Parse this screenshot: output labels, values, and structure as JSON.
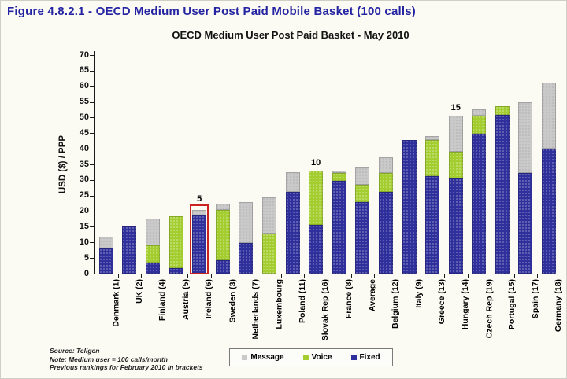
{
  "figure_title": "Figure 4.8.2.1 - OECD Medium User Post Paid Mobile Basket (100 calls)",
  "notes": [
    "Source: Teligen",
    "Note: Medium user = 100 calls/month",
    "Previous rankings for February 2010 in brackets"
  ],
  "colors": {
    "title": "#2424A3",
    "fixed": "#30309C",
    "voice": "#A4CE30",
    "message": "#C9C9C9",
    "highlight": "#CC2222",
    "axis": "#1a1a1a"
  },
  "chart_data": {
    "type": "bar",
    "stacked": true,
    "title": "OECD Medium User Post Paid Basket - May 2010",
    "ylabel": "USD ($) / PPP",
    "ylim": [
      0,
      70
    ],
    "ytick_step": 5,
    "grid": false,
    "legend_position": "bottom",
    "categories": [
      "Denmark (1)",
      "UK (2)",
      "Finland (4)",
      "Austria (5)",
      "Ireland (6)",
      "Sweden (3)",
      "Netherlands (7)",
      "Luxembourg",
      "Poland (11)",
      "Slovak Rep (16)",
      "France (8)",
      "Average",
      "Belgium (12)",
      "Italy (9)",
      "Greece (13)",
      "Hungary (14)",
      "Czech Rep (19)",
      "Portugal (15)",
      "Spain (17)",
      "Germany (18)"
    ],
    "series": [
      {
        "name": "Fixed",
        "color": "#30309C",
        "values": [
          8.0,
          15.0,
          3.5,
          1.7,
          18.6,
          4.3,
          9.8,
          0,
          26.2,
          15.7,
          29.8,
          22.8,
          26.3,
          42.9,
          31.2,
          30.4,
          44.7,
          50.8,
          32.3,
          40.0
        ]
      },
      {
        "name": "Voice",
        "color": "#A4CE30",
        "values": [
          0,
          0,
          5.5,
          16.6,
          0,
          16.0,
          0,
          12.9,
          0,
          17.3,
          2.4,
          5.6,
          6.0,
          0,
          11.6,
          8.6,
          5.9,
          2.8,
          0,
          0
        ]
      },
      {
        "name": "Message",
        "color": "#C9C9C9",
        "values": [
          3.8,
          0,
          8.7,
          0,
          1.7,
          2.2,
          13.2,
          11.5,
          6.3,
          0,
          0.7,
          5.6,
          4.9,
          0,
          1.3,
          11.5,
          2.0,
          0,
          22.5,
          21.3
        ]
      }
    ],
    "legend": [
      {
        "label": "Message",
        "color": "#C9C9C9"
      },
      {
        "label": "Voice",
        "color": "#A4CE30"
      },
      {
        "label": "Fixed",
        "color": "#30309C"
      }
    ],
    "annotations": [
      {
        "index": 4,
        "text": "5"
      },
      {
        "index": 9,
        "text": "10"
      },
      {
        "index": 15,
        "text": "15"
      }
    ],
    "highlight": {
      "index": 4,
      "top_value": 21.3,
      "color": "#CC2222"
    }
  }
}
